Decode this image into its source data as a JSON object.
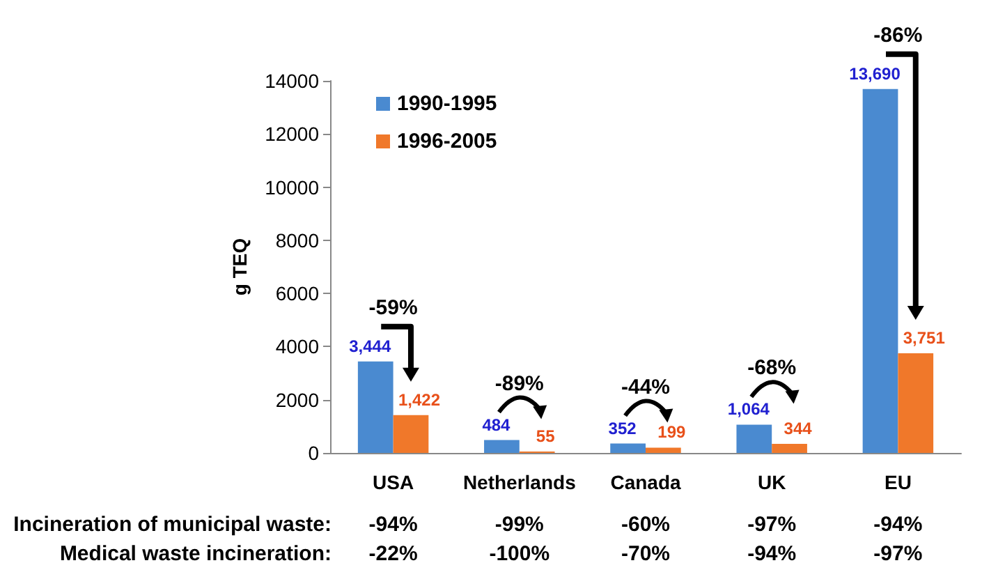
{
  "chart_data": {
    "type": "bar",
    "ylabel": "g TEQ",
    "categories": [
      "USA",
      "Netherlands",
      "Canada",
      "UK",
      "EU"
    ],
    "series": [
      {
        "name": "1990-1995",
        "color": "#4a8ad0",
        "values": [
          3444,
          484,
          352,
          1064,
          13690
        ],
        "value_labels": [
          "3,444",
          "484",
          "352",
          "1,064",
          "13,690"
        ]
      },
      {
        "name": "1996-2005",
        "color": "#f0782a",
        "values": [
          1422,
          55,
          199,
          344,
          3751
        ],
        "value_labels": [
          "1,422",
          "55",
          "199",
          "344",
          "3,751"
        ]
      }
    ],
    "ylim": [
      0,
      14000
    ],
    "yticks": [
      0,
      2000,
      4000,
      6000,
      8000,
      10000,
      12000,
      14000
    ],
    "grid": false,
    "legend": "top left",
    "annotations": [
      {
        "text": "-59%",
        "x": "USA",
        "y": 3444
      },
      {
        "text": "-89%",
        "x": "Netherlands",
        "y": 484
      },
      {
        "text": "-44%",
        "x": "Canada",
        "y": 352
      },
      {
        "text": "-68%",
        "x": "UK",
        "y": 1064
      },
      {
        "text": "-86%",
        "x": "EU",
        "y": 13690
      },
      "Incineration of municipal waste:",
      "-94%",
      "-99%",
      "-60%",
      "-97%",
      "-94%",
      "Medical waste incineration:",
      "-22%",
      "-100%",
      "-70%",
      "-94%",
      "-97%"
    ]
  }
}
